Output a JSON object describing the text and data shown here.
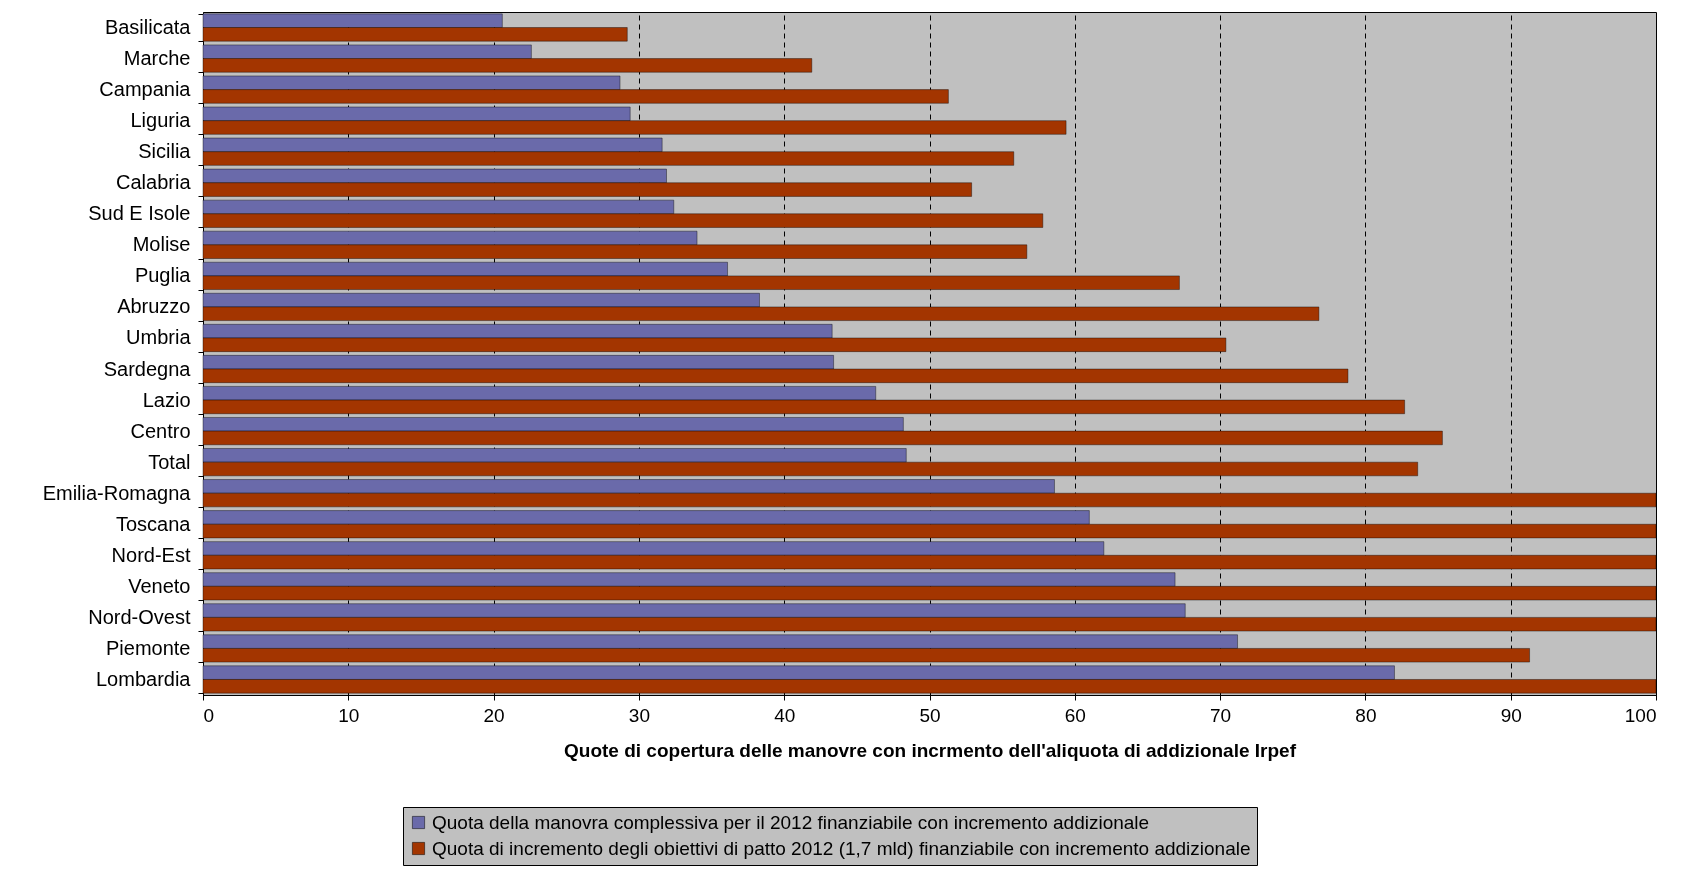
{
  "chart_data": {
    "type": "bar",
    "orientation": "horizontal",
    "xlabel": "Quote di copertura delle manovre con incrmento dell'aliquota di addizionale Irpef",
    "categories": [
      "Basilicata",
      "Marche",
      "Campania",
      "Liguria",
      "Sicilia",
      "Calabria",
      "Sud E Isole",
      "Molise",
      "Puglia",
      "Abruzzo",
      "Umbria",
      "Sardegna",
      "Lazio",
      "Centro",
      "Total",
      "Emilia-Romagna",
      "Toscana",
      "Nord-Est",
      "Veneto",
      "Nord-Ovest",
      "Piemonte",
      "Lombardia"
    ],
    "series": [
      {
        "name": "Quota della manovra complessiva per il 2012 finanziabile con incremento addizionale",
        "color": "#6a6aaa",
        "values": [
          20.6,
          22.6,
          28.7,
          29.4,
          31.6,
          31.9,
          32.4,
          34.0,
          36.1,
          38.3,
          43.3,
          43.4,
          46.3,
          48.2,
          48.4,
          58.6,
          61.0,
          62.0,
          66.9,
          67.6,
          71.2,
          82.0
        ]
      },
      {
        "name": "Quota di incremento degli obiettivi di patto 2012 (1,7 mld) finanziabile con incremento addizionale",
        "color": "#a33500",
        "values": [
          29.2,
          41.9,
          51.3,
          59.4,
          55.8,
          52.9,
          57.8,
          56.7,
          67.2,
          76.8,
          70.4,
          78.8,
          82.7,
          85.3,
          83.6,
          100,
          100,
          100,
          100,
          100,
          91.3,
          100
        ]
      }
    ],
    "xlim": [
      0,
      100
    ],
    "xticks": [
      0,
      10,
      20,
      30,
      40,
      50,
      60,
      70,
      80,
      90,
      100
    ],
    "grid": "x",
    "legend": "bottom"
  }
}
